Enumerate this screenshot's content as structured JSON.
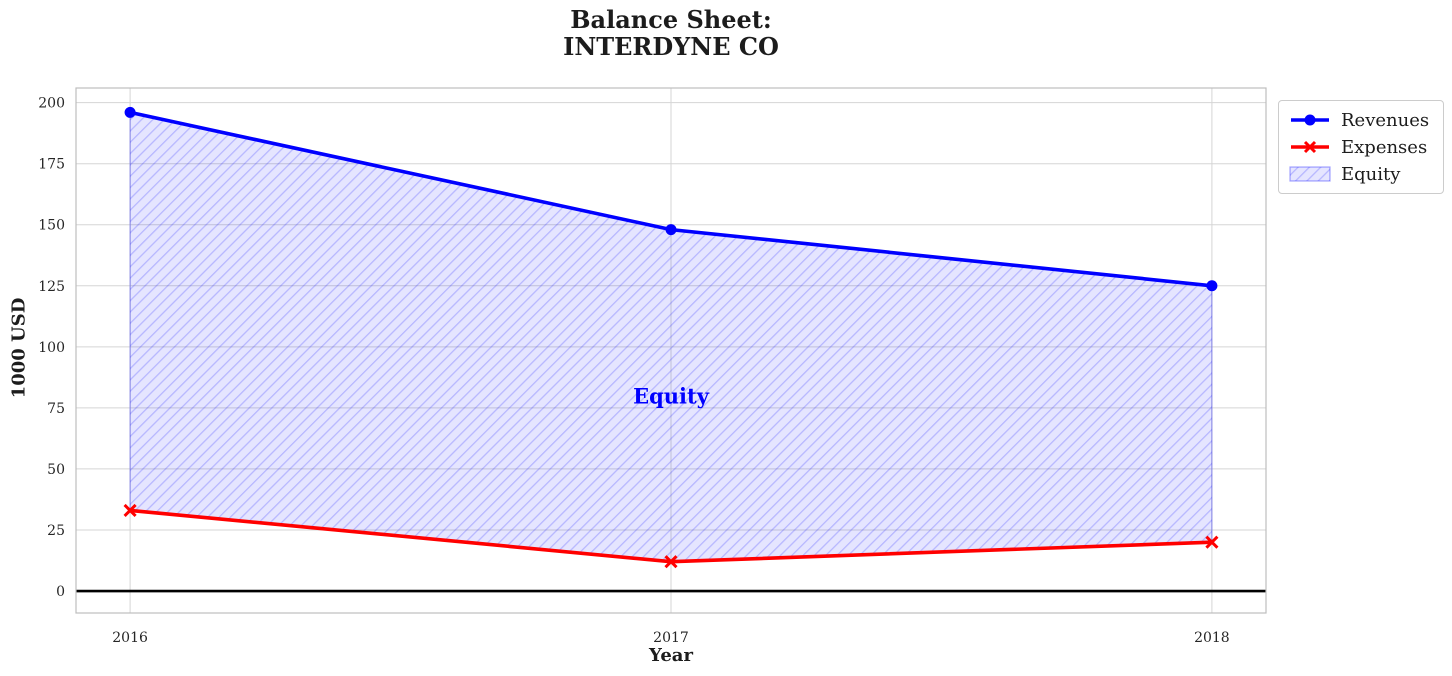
{
  "title": {
    "line1": "Balance Sheet:",
    "line2": "INTERDYNE CO"
  },
  "colors": {
    "revenues": "#0000ff",
    "expenses": "#ff0000",
    "grid": "#d5d5d5",
    "spine": "#bdbdbd",
    "tick_label": "#262626",
    "text": "#1c1c1c",
    "zero_line": "#000000"
  },
  "chart_data": {
    "type": "line",
    "title_lines": [
      "Balance Sheet:",
      "INTERDYNE CO"
    ],
    "x": [
      2016,
      2017,
      2018
    ],
    "series": [
      {
        "name": "Revenues",
        "color": "#0000ff",
        "marker": "circle",
        "values": [
          196,
          148,
          125
        ]
      },
      {
        "name": "Expenses",
        "color": "#ff0000",
        "marker": "x",
        "values": [
          33,
          12,
          20
        ]
      }
    ],
    "fill_between": {
      "label": "Equity",
      "upper": "Revenues",
      "lower": "Expenses",
      "fill_color": "rgba(0,0,255,0.10)",
      "hatch_color": "rgba(0,0,255,0.20)",
      "edge_color": "rgba(0,0,255,0.30)",
      "hatch_style": "diagonal"
    },
    "annotation": {
      "text": "Equity",
      "x": 2017,
      "y": 80,
      "color": "#0000ff"
    },
    "xlabel": "Year",
    "ylabel": "1000 USD",
    "xticks": [
      2016,
      2017,
      2018
    ],
    "xtick_labels": [
      "2016",
      "2017",
      "2018"
    ],
    "yticks": [
      0,
      25,
      50,
      75,
      100,
      125,
      150,
      175,
      200
    ],
    "xlim": [
      2015.9,
      2018.1
    ],
    "ylim": [
      -9,
      206
    ],
    "grid": true,
    "zero_line": true,
    "legend": {
      "position": "outside-top-right",
      "entries": [
        {
          "label": "Revenues",
          "type": "line-circle",
          "color": "#0000ff"
        },
        {
          "label": "Expenses",
          "type": "line-x",
          "color": "#ff0000"
        },
        {
          "label": "Equity",
          "type": "hatch-patch",
          "color": "#0000ff"
        }
      ]
    }
  }
}
